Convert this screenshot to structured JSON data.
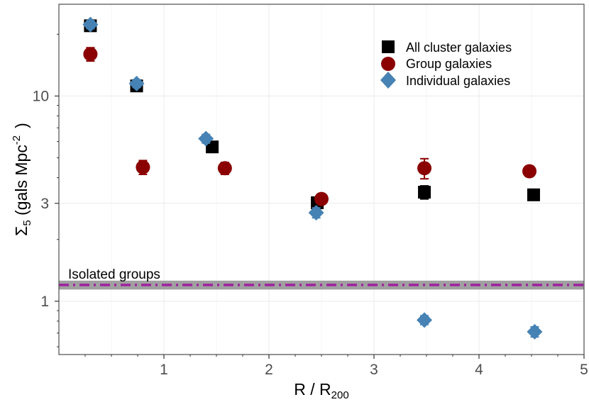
{
  "chart_data": {
    "type": "scatter",
    "title": "",
    "xlabel": "R / R",
    "xlabel_sub": "200",
    "ylabel_prefix": "Σ",
    "ylabel_sub": "5",
    "ylabel_text": " (gals Mpc",
    "ylabel_sup": "-2",
    "ylabel_close": ")",
    "x_scale": "linear",
    "y_scale": "log",
    "xlim": [
      0,
      5
    ],
    "ylim": [
      0.55,
      28
    ],
    "x_ticks": [
      1,
      2,
      3,
      4,
      5
    ],
    "x_tick_labels": [
      "1",
      "2",
      "3",
      "4",
      "5"
    ],
    "y_ticks": [
      1,
      3,
      10
    ],
    "y_tick_labels": [
      "1",
      "3",
      "10"
    ],
    "grid": true,
    "legend_position": "top-right",
    "series": [
      {
        "name": "All cluster galaxies",
        "marker": "square",
        "color": "#000000",
        "points": [
          {
            "x": 0.3,
            "y": 22.0,
            "err": 1.0
          },
          {
            "x": 0.74,
            "y": 11.2,
            "err": 0.4
          },
          {
            "x": 1.46,
            "y": 5.65,
            "err": 0.2
          },
          {
            "x": 2.46,
            "y": 3.02,
            "err": 0.12
          },
          {
            "x": 3.48,
            "y": 3.4,
            "err": 0.25
          },
          {
            "x": 4.52,
            "y": 3.3,
            "err": 0.12
          }
        ]
      },
      {
        "name": "Group galaxies",
        "marker": "circle",
        "color": "#8b0000",
        "points": [
          {
            "x": 0.3,
            "y": 16.0,
            "err": 1.2
          },
          {
            "x": 0.8,
            "y": 4.5,
            "err": 0.35
          },
          {
            "x": 1.58,
            "y": 4.45,
            "err": 0.3
          },
          {
            "x": 2.5,
            "y": 3.15,
            "err": 0.12
          },
          {
            "x": 3.48,
            "y": 4.45,
            "err": 0.5
          },
          {
            "x": 4.48,
            "y": 4.3,
            "err": 0.25
          }
        ]
      },
      {
        "name": "Individual galaxies",
        "marker": "diamond",
        "color": "#4682b4",
        "points": [
          {
            "x": 0.3,
            "y": 22.3,
            "err": 1.0
          },
          {
            "x": 0.74,
            "y": 11.5,
            "err": 0.5
          },
          {
            "x": 1.4,
            "y": 6.2,
            "err": 0.3
          },
          {
            "x": 2.45,
            "y": 2.7,
            "err": 0.15
          },
          {
            "x": 3.48,
            "y": 0.81,
            "err": 0.04
          },
          {
            "x": 4.53,
            "y": 0.71,
            "err": 0.04
          }
        ]
      }
    ],
    "reference_line": {
      "label": "Isolated groups",
      "value": 1.2,
      "band": [
        1.14,
        1.26
      ],
      "line_color": "#a020a0",
      "band_color": "#a0a0a0"
    }
  }
}
